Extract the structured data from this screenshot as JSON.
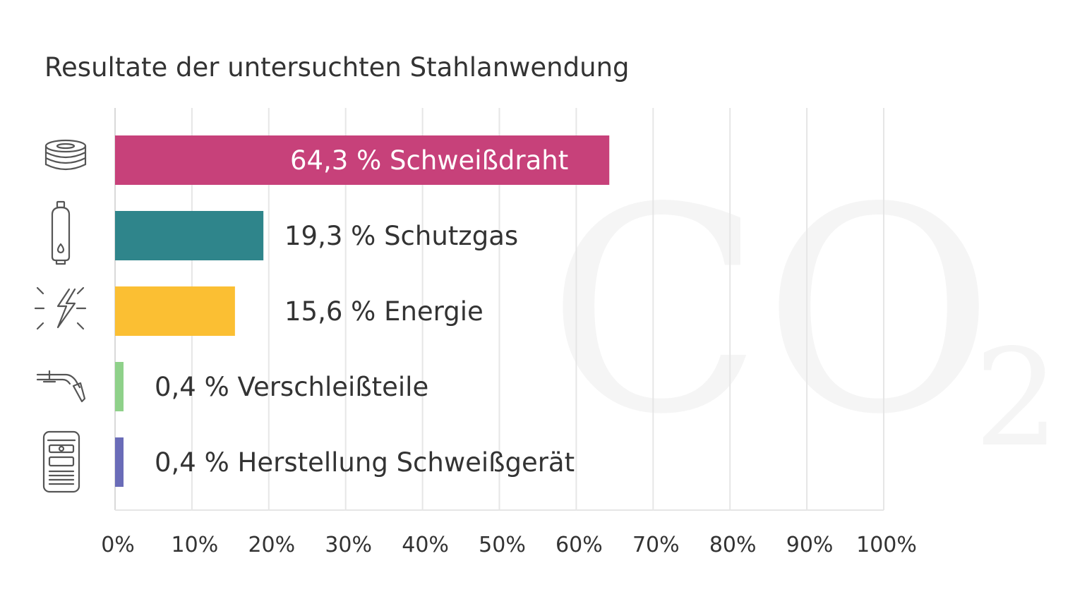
{
  "chart_data": {
    "type": "bar",
    "orientation": "horizontal",
    "title": "Resultate der untersuchten Stahlanwendung",
    "xlim": [
      0,
      100
    ],
    "grid": true,
    "x_ticks": [
      "0%",
      "10%",
      "20%",
      "30%",
      "40%",
      "50%",
      "60%",
      "70%",
      "80%",
      "90%",
      "100%"
    ],
    "categories": [
      "Schweißdraht",
      "Schutzgas",
      "Energie",
      "Verschleißteile",
      "Herstellung Schweißgerät"
    ],
    "values": [
      64.3,
      19.3,
      15.6,
      0.4,
      0.4
    ],
    "labels": [
      "64,3 % Schweißdraht",
      "19,3 % Schutzgas",
      "15,6 % Energie",
      "0,4 % Verschleißteile",
      "0,4 % Herstellung Schweißgerät"
    ],
    "colors": [
      "#c7417a",
      "#2f858b",
      "#fbbf33",
      "#8fd18a",
      "#6a6cb8"
    ],
    "icons": [
      "wire-spool-icon",
      "gas-bottle-icon",
      "lightning-icon",
      "welding-torch-icon",
      "welding-machine-icon"
    ],
    "watermark": {
      "main": "CO",
      "subscript": "2"
    }
  }
}
